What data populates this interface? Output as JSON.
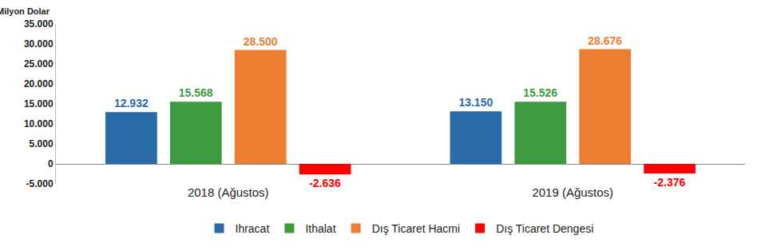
{
  "chart_data": {
    "type": "bar",
    "y_label": "Milyon Dolar",
    "categories": [
      "2018 (Ağustos)",
      "2019 (Ağustos)"
    ],
    "series": [
      {
        "name": "Ihracat",
        "color": "#2a6aa8",
        "values": [
          12932,
          13150
        ],
        "value_labels": [
          "12.932",
          "13.150"
        ]
      },
      {
        "name": "Ithalat",
        "color": "#3e9a3e",
        "values": [
          15568,
          15526
        ],
        "value_labels": [
          "15.568",
          "15.526"
        ]
      },
      {
        "name": "Dış Ticaret Hacmi",
        "color": "#ed7d31",
        "values": [
          28500,
          28676
        ],
        "value_labels": [
          "28.500",
          "28.676"
        ]
      },
      {
        "name": "Dış Ticaret Dengesi",
        "color": "#ff0000",
        "values": [
          -2636,
          -2376
        ],
        "value_labels": [
          "-2.636",
          "-2.376"
        ]
      }
    ],
    "ylim": [
      -5000,
      35000
    ],
    "yticks": [
      {
        "value": -5000,
        "label": "-5.000"
      },
      0,
      {
        "value": 5000,
        "label": "5.000"
      },
      {
        "value": 10000,
        "label": "10.000"
      },
      {
        "value": 15000,
        "label": "15.000"
      },
      {
        "value": 20000,
        "label": "20.000"
      },
      {
        "value": 25000,
        "label": "25.000"
      },
      {
        "value": 30000,
        "label": "30.000"
      },
      {
        "value": 35000,
        "label": "35.000"
      }
    ],
    "grid": false,
    "legend": "bottom",
    "data_labels": true
  }
}
